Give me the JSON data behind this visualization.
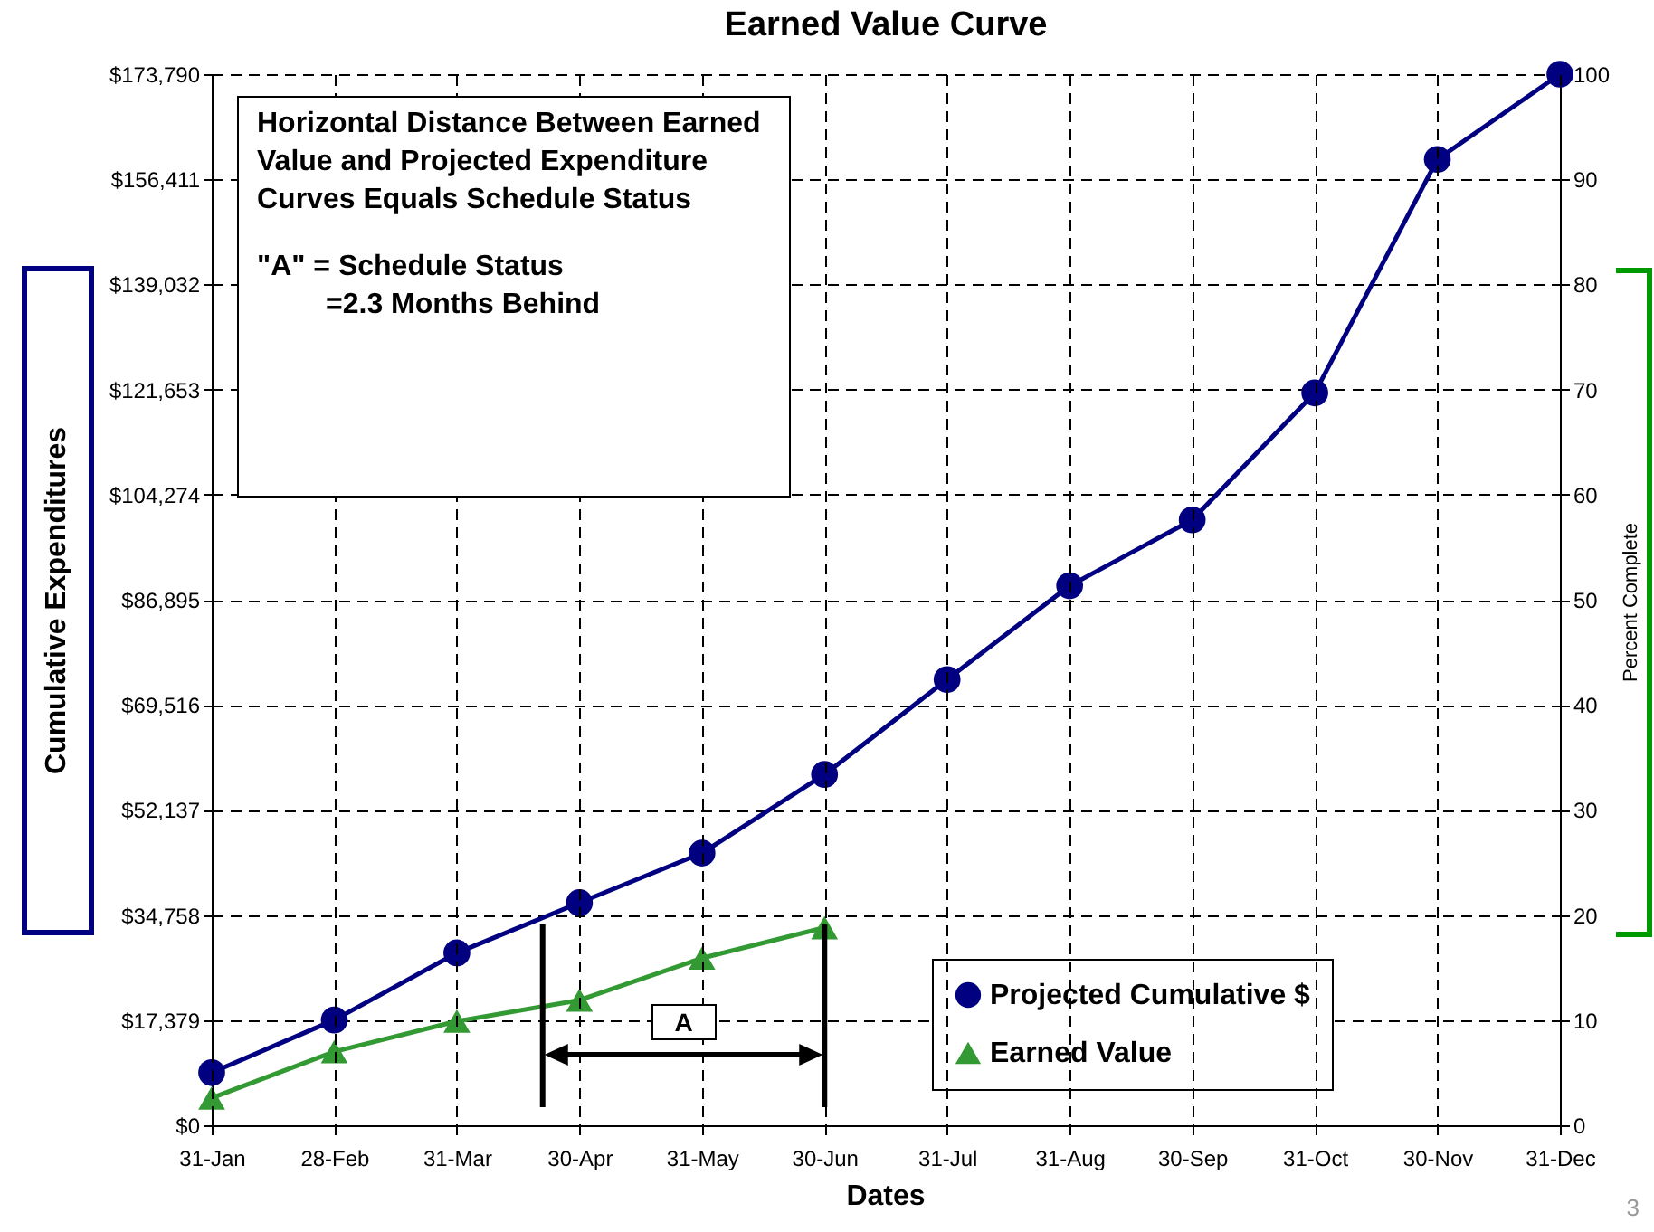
{
  "chart_data": {
    "type": "line",
    "title": "Earned Value Curve",
    "xlabel": "Dates",
    "ylabel": "Cumulative Expenditures",
    "y2label": "Percent Complete",
    "categories": [
      "31-Jan",
      "28-Feb",
      "31-Mar",
      "30-Apr",
      "31-May",
      "30-Jun",
      "31-Jul",
      "31-Aug",
      "30-Sep",
      "31-Oct",
      "30-Nov",
      "31-Dec"
    ],
    "series": [
      {
        "name": "Projected Cumulative $",
        "color": "#000080",
        "marker": "circle",
        "values": [
          8700,
          17400,
          28500,
          36800,
          45000,
          58000,
          73700,
          89200,
          100100,
          121100,
          159700,
          173790
        ]
      },
      {
        "name": "Earned Value",
        "color": "#339933",
        "marker": "triangle",
        "axis": "y2",
        "values": [
          2.6,
          7.0,
          9.9,
          11.9,
          15.9,
          18.8,
          null,
          null,
          null,
          null,
          null,
          null
        ]
      }
    ],
    "ylim": [
      0,
      173790
    ],
    "yticks": [
      {
        "value": 0,
        "label": "$0"
      },
      {
        "value": 17379,
        "label": "$17,379"
      },
      {
        "value": 34758,
        "label": "$34,758"
      },
      {
        "value": 52137,
        "label": "$52,137"
      },
      {
        "value": 69516,
        "label": "$69,516"
      },
      {
        "value": 86895,
        "label": "$86,895"
      },
      {
        "value": 104274,
        "label": "$104,274"
      },
      {
        "value": 121653,
        "label": "$121,653"
      },
      {
        "value": 139032,
        "label": "$139,032"
      },
      {
        "value": 156411,
        "label": "$156,411"
      },
      {
        "value": 173790,
        "label": "$173,790"
      }
    ],
    "y2lim": [
      0,
      100
    ],
    "y2ticks": [
      0,
      10,
      20,
      30,
      40,
      50,
      60,
      70,
      80,
      90,
      100
    ],
    "grid": true,
    "legend": "bottom right",
    "line_style": "solid",
    "annotations": [
      "Horizontal Distance Between Earned Value and Projected Expenditure Curves Equals Schedule Status",
      "\"A\" = Schedule Status\n=2.3 Months Behind",
      "A",
      "3"
    ]
  }
}
